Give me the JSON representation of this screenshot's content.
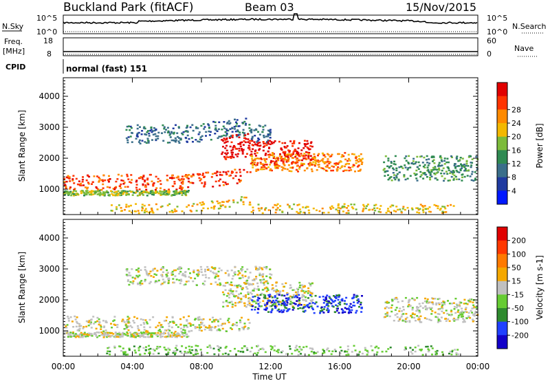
{
  "header": {
    "site": "Buckland Park (fitACF)",
    "beam": "Beam 03",
    "date": "15/Nov/2015"
  },
  "noise_panel": {
    "left_label": "N.Sky",
    "left_top": "10^5",
    "left_bottom": "10^0",
    "right_top": "10^5",
    "right_bottom": "10^0",
    "right_label": "N.Search"
  },
  "freq_panel": {
    "label_line1": "Freq.",
    "label_line2": "[MHz]",
    "left_top": "18",
    "left_bottom": "8",
    "right_top": "60",
    "right_bottom": "0",
    "right_label": "Nave"
  },
  "cpid_panel": {
    "label": "CPID",
    "mode": "normal (fast) 151"
  },
  "chart_data": [
    {
      "type": "heatmap",
      "name": "power",
      "ylabel": "Slant Range [km]",
      "y_ticks": [
        1000,
        2000,
        3000,
        4000
      ],
      "ylim": [
        180,
        4600
      ],
      "colorbar_label": "Power [dB]",
      "colorbar_ticks": [
        4,
        8,
        12,
        16,
        20,
        24,
        28
      ],
      "colorbar_colors": [
        "#0018ff",
        "#1f3aa0",
        "#3a6e8a",
        "#2f8a52",
        "#7cbb3a",
        "#f3b800",
        "#ff8a00",
        "#ff3300",
        "#e10000"
      ]
    },
    {
      "type": "heatmap",
      "name": "velocity",
      "ylabel": "Slant Range [km]",
      "y_ticks": [
        1000,
        2000,
        3000,
        4000
      ],
      "ylim": [
        180,
        4600
      ],
      "colorbar_label": "Velocity [m s-1]",
      "colorbar_ticks": [
        200,
        100,
        50,
        15,
        -15,
        -50,
        -100,
        -200
      ],
      "colorbar_colors": [
        "#1200c8",
        "#2040ff",
        "#2e8a2e",
        "#66cc33",
        "#c0c0c0",
        "#f5a800",
        "#ff7a00",
        "#ff3800",
        "#e00000"
      ]
    }
  ],
  "time_axis": {
    "label": "Time UT",
    "ticks": [
      "00:00",
      "04:00",
      "08:00",
      "12:00",
      "16:00",
      "20:00",
      "00:00"
    ]
  }
}
